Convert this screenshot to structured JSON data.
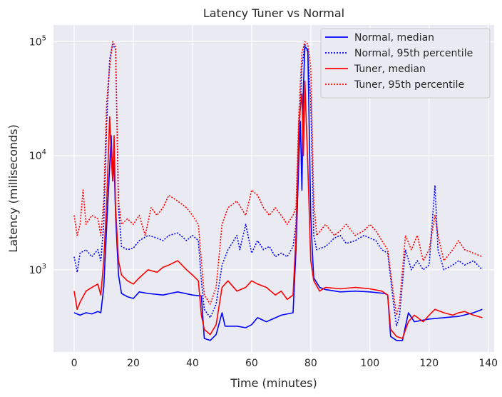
{
  "chart_data": {
    "type": "line",
    "title": "Latency Tuner vs Normal",
    "xlabel": "Time (minutes)",
    "ylabel": "Latency (milliseconds)",
    "yscale": "log",
    "xlim": [
      -7,
      142
    ],
    "ylim": [
      190,
      140000
    ],
    "xticks": [
      0,
      20,
      40,
      60,
      80,
      100,
      120,
      140
    ],
    "yticks": [
      {
        "value": 1000,
        "base": "10",
        "exp": "3"
      },
      {
        "value": 10000,
        "base": "10",
        "exp": "4"
      },
      {
        "value": 100000,
        "base": "10",
        "exp": "5"
      }
    ],
    "grid": true,
    "legend_position": "top-right",
    "series": [
      {
        "name": "Normal, median",
        "color": "#0000ff",
        "style": "solid",
        "points": [
          [
            0,
            420
          ],
          [
            2,
            400
          ],
          [
            4,
            420
          ],
          [
            6,
            410
          ],
          [
            8,
            430
          ],
          [
            9,
            420
          ],
          [
            10,
            700
          ],
          [
            11,
            2500
          ],
          [
            12,
            8000
          ],
          [
            12.5,
            15000
          ],
          [
            13,
            6000
          ],
          [
            13.5,
            9000
          ],
          [
            14,
            3000
          ],
          [
            15,
            900
          ],
          [
            16,
            620
          ],
          [
            18,
            580
          ],
          [
            20,
            560
          ],
          [
            22,
            640
          ],
          [
            25,
            620
          ],
          [
            30,
            600
          ],
          [
            35,
            640
          ],
          [
            40,
            600
          ],
          [
            43,
            590
          ],
          [
            44,
            250
          ],
          [
            46,
            240
          ],
          [
            48,
            270
          ],
          [
            50,
            420
          ],
          [
            51,
            320
          ],
          [
            55,
            320
          ],
          [
            58,
            310
          ],
          [
            60,
            330
          ],
          [
            62,
            380
          ],
          [
            65,
            350
          ],
          [
            70,
            400
          ],
          [
            74,
            420
          ],
          [
            75,
            1500
          ],
          [
            76,
            10000
          ],
          [
            76.5,
            20000
          ],
          [
            77,
            5000
          ],
          [
            77.5,
            40000
          ],
          [
            78,
            90000
          ],
          [
            79,
            85000
          ],
          [
            80,
            3000
          ],
          [
            80.5,
            1500
          ],
          [
            81,
            850
          ],
          [
            83,
            700
          ],
          [
            85,
            670
          ],
          [
            90,
            640
          ],
          [
            95,
            650
          ],
          [
            100,
            640
          ],
          [
            105,
            620
          ],
          [
            106,
            600
          ],
          [
            107,
            260
          ],
          [
            109,
            240
          ],
          [
            111,
            240
          ],
          [
            113,
            420
          ],
          [
            115,
            350
          ],
          [
            120,
            370
          ],
          [
            125,
            380
          ],
          [
            130,
            390
          ],
          [
            135,
            420
          ],
          [
            138,
            450
          ]
        ]
      },
      {
        "name": "Normal, 95th percentile",
        "color": "#0000ff",
        "style": "dotted",
        "points": [
          [
            0,
            1300
          ],
          [
            1,
            950
          ],
          [
            2,
            1400
          ],
          [
            4,
            1500
          ],
          [
            6,
            1300
          ],
          [
            8,
            1500
          ],
          [
            9,
            1200
          ],
          [
            10,
            2500
          ],
          [
            11,
            20000
          ],
          [
            12,
            70000
          ],
          [
            13,
            95000
          ],
          [
            14,
            85000
          ],
          [
            15,
            3500
          ],
          [
            16,
            1600
          ],
          [
            18,
            1500
          ],
          [
            20,
            1550
          ],
          [
            22,
            1800
          ],
          [
            25,
            2000
          ],
          [
            28,
            1900
          ],
          [
            30,
            1800
          ],
          [
            32,
            2000
          ],
          [
            35,
            2100
          ],
          [
            38,
            1800
          ],
          [
            40,
            2000
          ],
          [
            42,
            1800
          ],
          [
            43,
            800
          ],
          [
            44,
            450
          ],
          [
            46,
            380
          ],
          [
            48,
            500
          ],
          [
            50,
            1100
          ],
          [
            52,
            1500
          ],
          [
            55,
            2000
          ],
          [
            56,
            1500
          ],
          [
            58,
            2500
          ],
          [
            60,
            1400
          ],
          [
            62,
            1800
          ],
          [
            64,
            1500
          ],
          [
            66,
            1600
          ],
          [
            68,
            1300
          ],
          [
            70,
            1400
          ],
          [
            72,
            1300
          ],
          [
            74,
            1600
          ],
          [
            75,
            2500
          ],
          [
            76,
            15000
          ],
          [
            77,
            60000
          ],
          [
            78,
            95000
          ],
          [
            79,
            80000
          ],
          [
            80,
            30000
          ],
          [
            81,
            2000
          ],
          [
            82,
            1500
          ],
          [
            85,
            1600
          ],
          [
            88,
            1900
          ],
          [
            90,
            2000
          ],
          [
            92,
            1700
          ],
          [
            95,
            1800
          ],
          [
            98,
            2000
          ],
          [
            100,
            1900
          ],
          [
            102,
            1800
          ],
          [
            104,
            1500
          ],
          [
            106,
            1400
          ],
          [
            108,
            500
          ],
          [
            109,
            320
          ],
          [
            110,
            400
          ],
          [
            112,
            1500
          ],
          [
            114,
            1000
          ],
          [
            116,
            1200
          ],
          [
            118,
            1000
          ],
          [
            120,
            1100
          ],
          [
            122,
            5500
          ],
          [
            123,
            1500
          ],
          [
            125,
            1000
          ],
          [
            128,
            1100
          ],
          [
            130,
            1200
          ],
          [
            132,
            1100
          ],
          [
            135,
            1200
          ],
          [
            138,
            1000
          ]
        ]
      },
      {
        "name": "Tuner, median",
        "color": "#ff0000",
        "style": "solid",
        "points": [
          [
            0,
            650
          ],
          [
            1,
            450
          ],
          [
            2,
            520
          ],
          [
            4,
            650
          ],
          [
            6,
            700
          ],
          [
            8,
            750
          ],
          [
            9,
            600
          ],
          [
            10,
            1200
          ],
          [
            11,
            4000
          ],
          [
            12,
            22000
          ],
          [
            12.5,
            10000
          ],
          [
            13,
            6000
          ],
          [
            13.5,
            15000
          ],
          [
            14,
            3500
          ],
          [
            15,
            1200
          ],
          [
            16,
            900
          ],
          [
            18,
            800
          ],
          [
            20,
            750
          ],
          [
            22,
            850
          ],
          [
            25,
            1000
          ],
          [
            28,
            950
          ],
          [
            30,
            1050
          ],
          [
            32,
            1100
          ],
          [
            35,
            1200
          ],
          [
            38,
            1000
          ],
          [
            40,
            900
          ],
          [
            42,
            800
          ],
          [
            43,
            400
          ],
          [
            44,
            300
          ],
          [
            46,
            270
          ],
          [
            48,
            330
          ],
          [
            50,
            700
          ],
          [
            52,
            800
          ],
          [
            55,
            650
          ],
          [
            58,
            700
          ],
          [
            60,
            800
          ],
          [
            62,
            750
          ],
          [
            65,
            700
          ],
          [
            68,
            600
          ],
          [
            70,
            650
          ],
          [
            72,
            550
          ],
          [
            74,
            600
          ],
          [
            75,
            2000
          ],
          [
            76,
            20000
          ],
          [
            77,
            35000
          ],
          [
            77.5,
            10000
          ],
          [
            78,
            45000
          ],
          [
            79,
            8000
          ],
          [
            80,
            1200
          ],
          [
            81,
            800
          ],
          [
            83,
            650
          ],
          [
            85,
            700
          ],
          [
            90,
            680
          ],
          [
            95,
            700
          ],
          [
            100,
            680
          ],
          [
            104,
            650
          ],
          [
            106,
            600
          ],
          [
            107,
            300
          ],
          [
            109,
            260
          ],
          [
            111,
            250
          ],
          [
            113,
            350
          ],
          [
            115,
            400
          ],
          [
            118,
            350
          ],
          [
            120,
            400
          ],
          [
            122,
            450
          ],
          [
            125,
            420
          ],
          [
            128,
            400
          ],
          [
            130,
            420
          ],
          [
            132,
            430
          ],
          [
            135,
            400
          ],
          [
            138,
            380
          ]
        ]
      },
      {
        "name": "Tuner, 95th percentile",
        "color": "#ff0000",
        "style": "dotted",
        "points": [
          [
            0,
            3000
          ],
          [
            1,
            2000
          ],
          [
            2,
            2500
          ],
          [
            3,
            5000
          ],
          [
            4,
            2500
          ],
          [
            6,
            3000
          ],
          [
            8,
            2800
          ],
          [
            9,
            2000
          ],
          [
            10,
            4000
          ],
          [
            11,
            30000
          ],
          [
            12,
            60000
          ],
          [
            13,
            100000
          ],
          [
            14,
            90000
          ],
          [
            15,
            4000
          ],
          [
            16,
            2500
          ],
          [
            18,
            2800
          ],
          [
            20,
            2500
          ],
          [
            22,
            3000
          ],
          [
            24,
            2000
          ],
          [
            26,
            3500
          ],
          [
            28,
            3000
          ],
          [
            30,
            3500
          ],
          [
            32,
            4500
          ],
          [
            35,
            4000
          ],
          [
            38,
            3500
          ],
          [
            40,
            3000
          ],
          [
            42,
            2500
          ],
          [
            43,
            1200
          ],
          [
            44,
            600
          ],
          [
            46,
            500
          ],
          [
            48,
            700
          ],
          [
            50,
            2500
          ],
          [
            52,
            3500
          ],
          [
            55,
            4000
          ],
          [
            58,
            3000
          ],
          [
            60,
            5000
          ],
          [
            62,
            4500
          ],
          [
            64,
            3500
          ],
          [
            66,
            3000
          ],
          [
            68,
            3500
          ],
          [
            70,
            3000
          ],
          [
            72,
            2500
          ],
          [
            74,
            3000
          ],
          [
            75,
            3500
          ],
          [
            76,
            25000
          ],
          [
            77,
            80000
          ],
          [
            78,
            100000
          ],
          [
            79,
            95000
          ],
          [
            80,
            60000
          ],
          [
            81,
            4000
          ],
          [
            82,
            2000
          ],
          [
            85,
            2500
          ],
          [
            88,
            2000
          ],
          [
            90,
            2200
          ],
          [
            92,
            2500
          ],
          [
            95,
            2000
          ],
          [
            98,
            2200
          ],
          [
            100,
            2500
          ],
          [
            102,
            2200
          ],
          [
            104,
            1800
          ],
          [
            106,
            1500
          ],
          [
            108,
            600
          ],
          [
            109,
            400
          ],
          [
            110,
            500
          ],
          [
            112,
            2000
          ],
          [
            114,
            1500
          ],
          [
            116,
            2000
          ],
          [
            118,
            1200
          ],
          [
            120,
            1500
          ],
          [
            122,
            3000
          ],
          [
            123,
            2000
          ],
          [
            125,
            1200
          ],
          [
            128,
            1500
          ],
          [
            130,
            1800
          ],
          [
            132,
            1500
          ],
          [
            135,
            1400
          ],
          [
            138,
            1300
          ]
        ]
      }
    ]
  }
}
